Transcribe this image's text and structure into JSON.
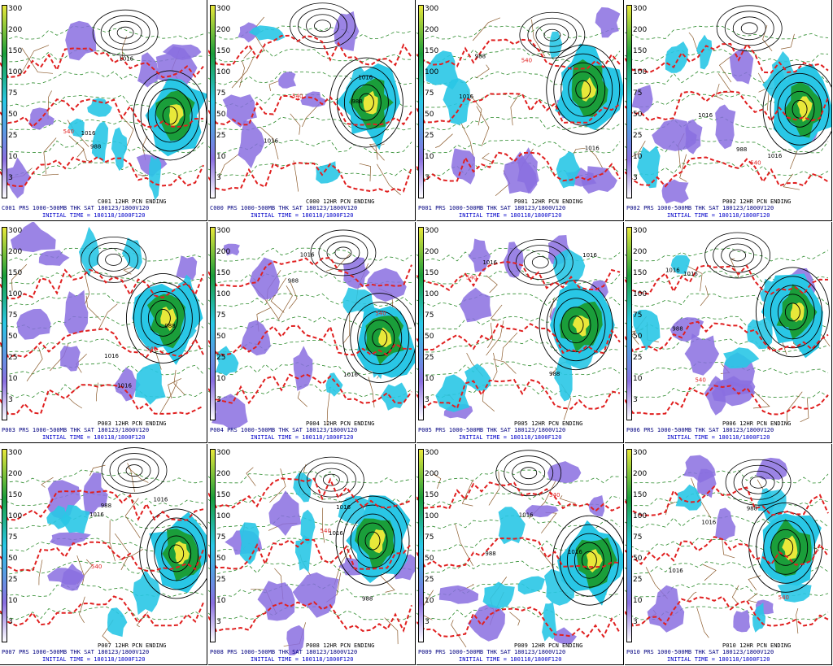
{
  "panels": [
    {
      "id": "C001",
      "title_top": "C001 12HR PCN ENDING",
      "caption": "C001 PRS 1000-500MB THK SAT 180123/1800V120",
      "initial": "INITIAL TIME = 180118/1800F120"
    },
    {
      "id": "C000",
      "title_top": "C000 12HR PCN ENDING",
      "caption": "C000 PRS 1000-500MB THK SAT 180123/1800V120",
      "initial": "INITIAL TIME = 180118/1800F120"
    },
    {
      "id": "P001",
      "title_top": "P001 12HR PCN ENDING",
      "caption": "P001 PRS 1000-500MB THK SAT 180123/1800V120",
      "initial": "INITIAL TIME = 180118/1800F120"
    },
    {
      "id": "P002",
      "title_top": "P002 12HR PCN ENDING",
      "caption": "P002 PRS 1000-500MB THK SAT 180123/1800V120",
      "initial": "INITIAL TIME = 180118/1800F120"
    },
    {
      "id": "P003",
      "title_top": "P003 12HR PCN ENDING",
      "caption": "P003 PRS 1000-500MB THK SAT 180123/1800V120",
      "initial": "INITIAL TIME = 180118/1800F120"
    },
    {
      "id": "P004",
      "title_top": "P004 12HR PCN ENDING",
      "caption": "P004 PRS 1000-500MB THK SAT 180123/1800V120",
      "initial": "INITIAL TIME = 180118/1800F120"
    },
    {
      "id": "P005",
      "title_top": "P005 12HR PCN ENDING",
      "caption": "P005 PRS 1000-500MB THK SAT 180123/1800V120",
      "initial": "INITIAL TIME = 180118/1800F120"
    },
    {
      "id": "P006",
      "title_top": "P006 12HR PCN ENDING",
      "caption": "P006 PRS 1000-500MB THK SAT 180123/1800V120",
      "initial": "INITIAL TIME = 180118/1800F120"
    },
    {
      "id": "P007",
      "title_top": "P007 12HR PCN ENDING",
      "caption": "P007 PRS 1000-500MB THK SAT 180123/1800V120",
      "initial": "INITIAL TIME = 180118/1800F120"
    },
    {
      "id": "P008",
      "title_top": "P008 12HR PCN ENDING",
      "caption": "P008 PRS 1000-500MB THK SAT 180123/1800V120",
      "initial": "INITIAL TIME = 180118/1800F120"
    },
    {
      "id": "P009",
      "title_top": "P009 12HR PCN ENDING",
      "caption": "P009 PRS 1000-500MB THK SAT 180123/1800V120",
      "initial": "INITIAL TIME = 180118/1800F120"
    },
    {
      "id": "P010",
      "title_top": "P010 12HR PCN ENDING",
      "caption": "P010 PRS 1000-500MB THK SAT 180123/1800V120",
      "initial": "INITIAL TIME = 180118/1800F120"
    }
  ],
  "scale_labels": [
    "300",
    "200",
    "150",
    "100",
    "75",
    "50",
    "25",
    "10",
    "3"
  ],
  "contour_labels": [
    "1016",
    "1016",
    "988",
    "540"
  ],
  "colors": {
    "precip_light": "#8a6fe0",
    "precip_mid": "#29c7e6",
    "precip_heavy": "#1a9e3a",
    "precip_core": "#e8e83a",
    "isobar": "#000000",
    "thickness_540": "#e02020",
    "thickness_other": "#2a8a2a",
    "borders": "#8b5a2b",
    "caption": "#000080",
    "initial": "#0000c8"
  }
}
